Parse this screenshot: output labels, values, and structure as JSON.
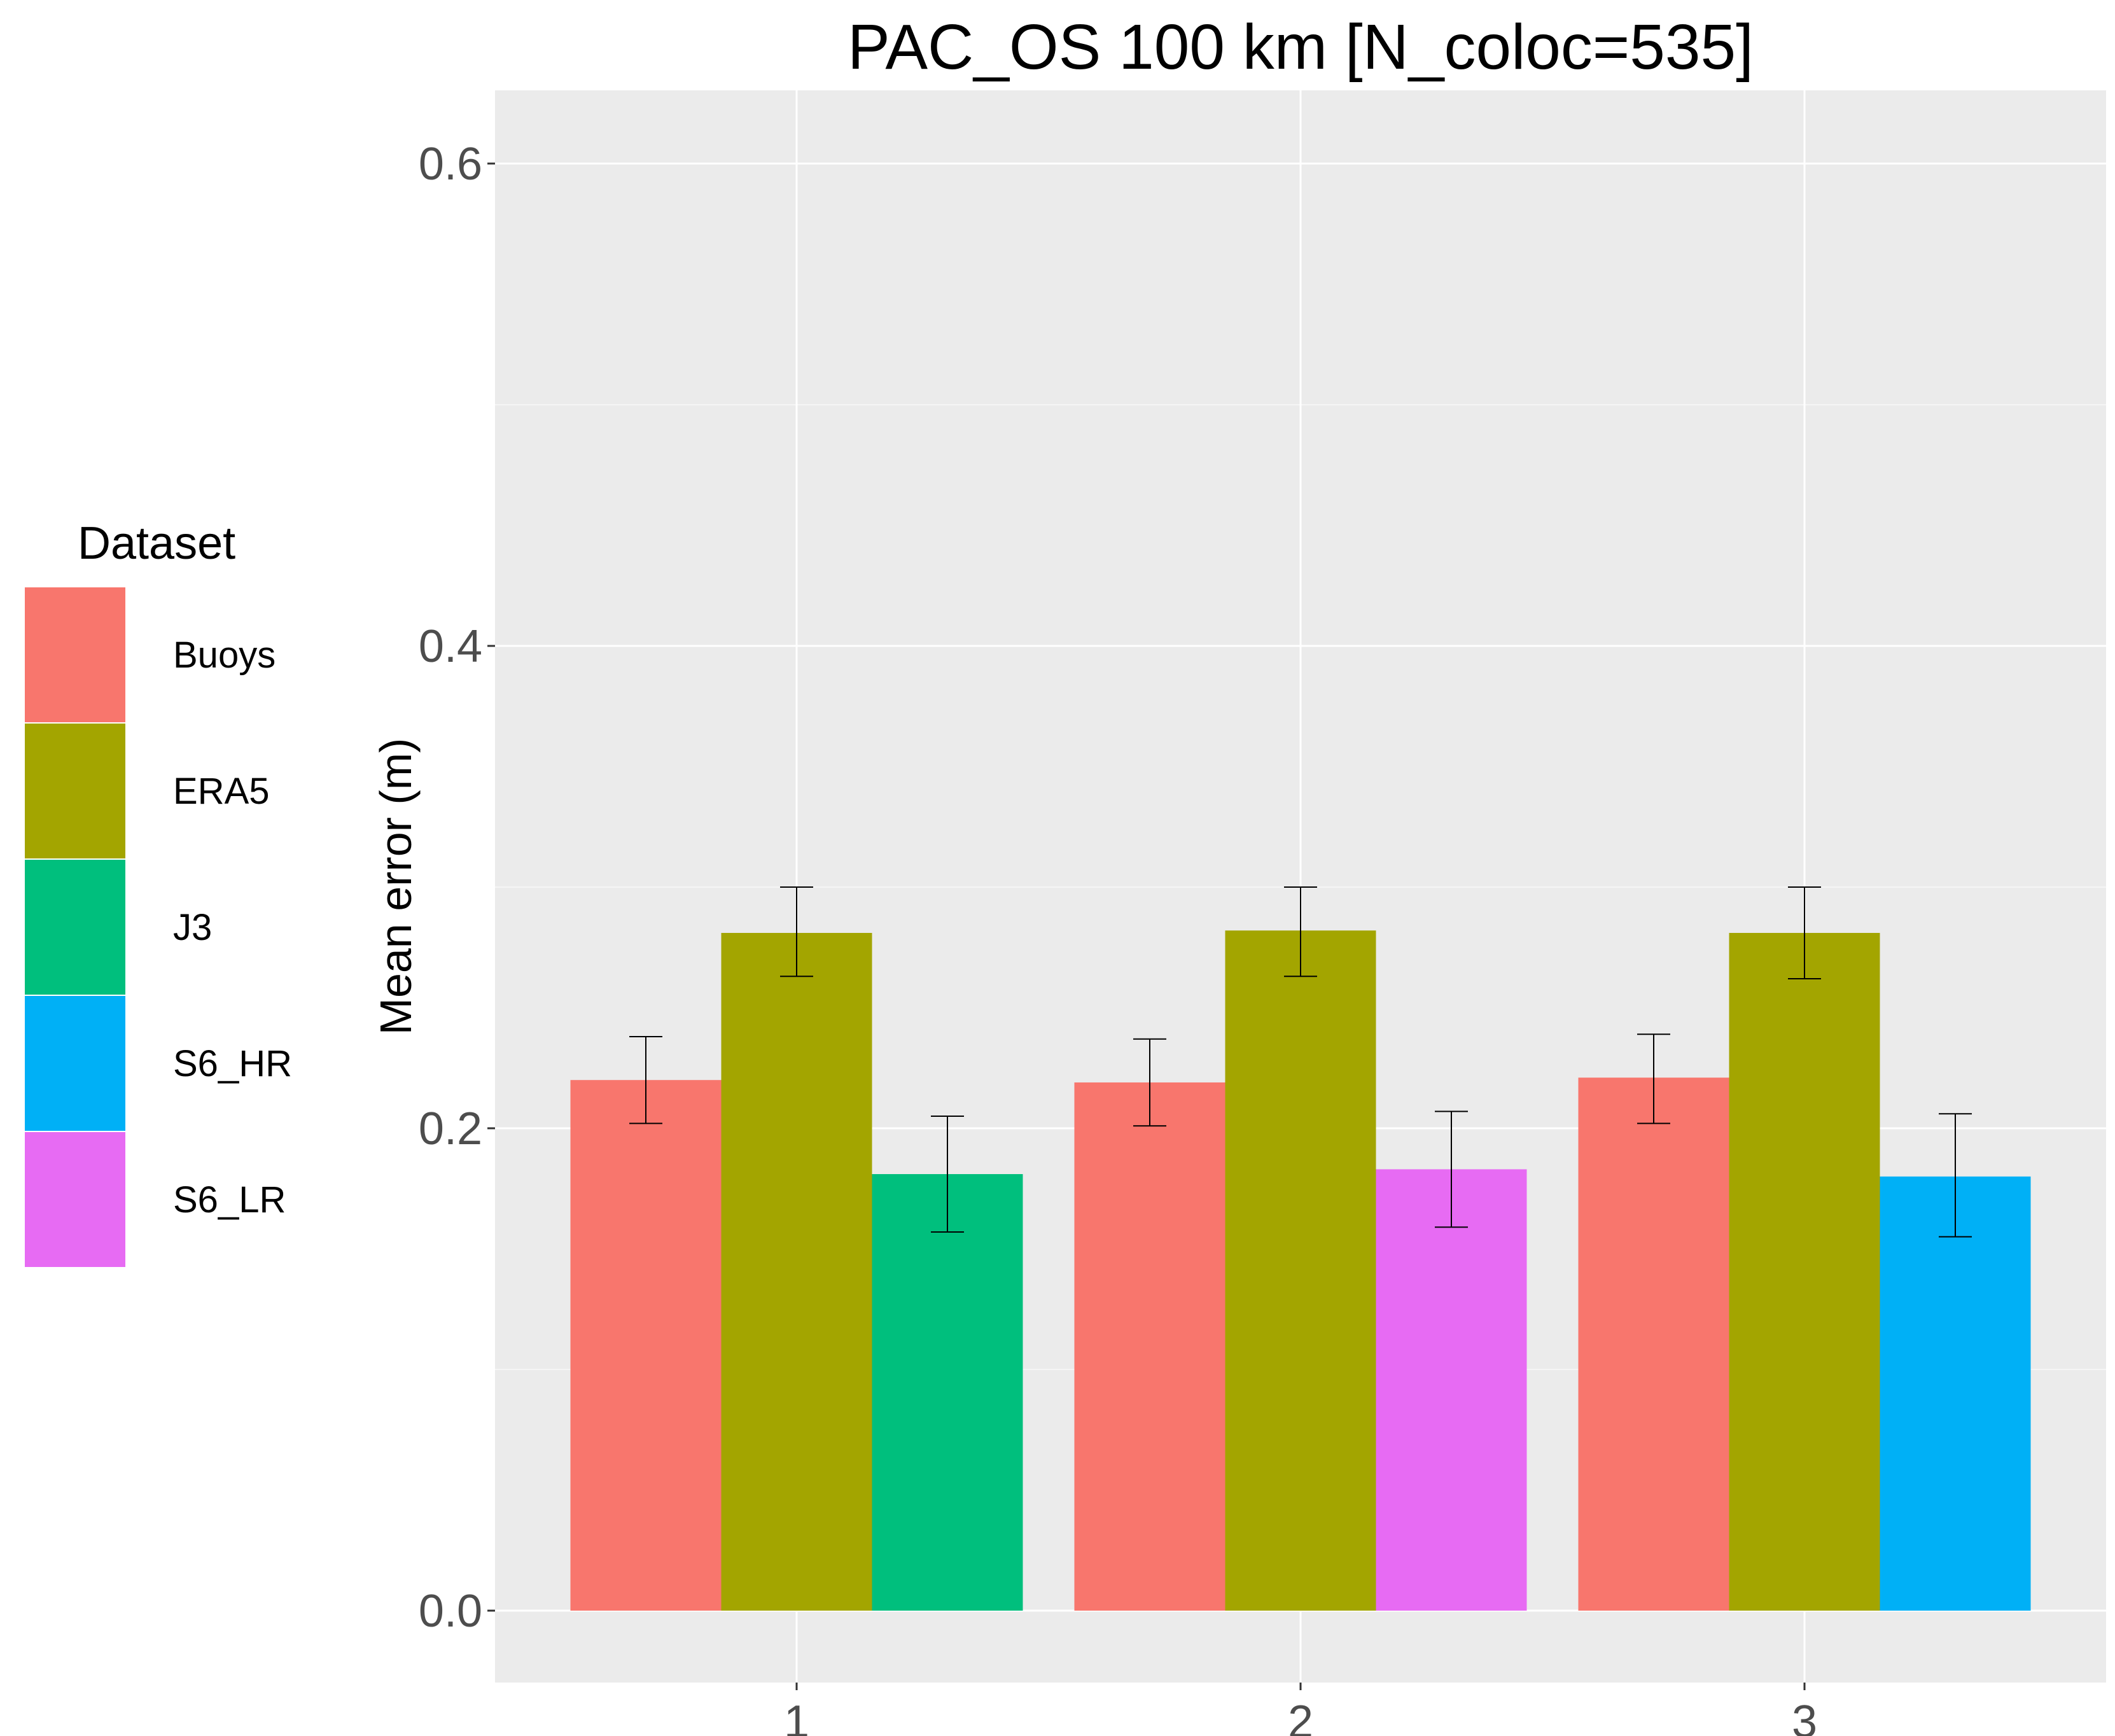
{
  "chart_data": {
    "type": "bar",
    "title": "PAC_OS 100 km [N_coloc=535]",
    "xlabel": "",
    "ylabel": "Mean error (m)",
    "ylim": [
      -0.03,
      0.63
    ],
    "yticks": [
      "0.0",
      "0.2",
      "0.4",
      "0.6"
    ],
    "ytick_values": [
      0.0,
      0.2,
      0.4,
      0.6
    ],
    "categories": [
      "1",
      "2",
      "3"
    ],
    "grid": true,
    "legend": {
      "title": "Dataset",
      "position": "left",
      "entries": [
        {
          "name": "Buoys",
          "color": "#F8766D"
        },
        {
          "name": "ERA5",
          "color": "#A3A500"
        },
        {
          "name": "J3",
          "color": "#00BF7D"
        },
        {
          "name": "S6_HR",
          "color": "#00B0F6"
        },
        {
          "name": "S6_LR",
          "color": "#E76BF3"
        }
      ]
    },
    "groups": [
      {
        "category": "1",
        "bars": [
          {
            "series": "Buoys",
            "value": 0.22,
            "err_low": 0.202,
            "err_high": 0.238
          },
          {
            "series": "ERA5",
            "value": 0.281,
            "err_low": 0.263,
            "err_high": 0.3
          },
          {
            "series": "J3",
            "value": 0.181,
            "err_low": 0.157,
            "err_high": 0.205
          }
        ]
      },
      {
        "category": "2",
        "bars": [
          {
            "series": "Buoys",
            "value": 0.219,
            "err_low": 0.201,
            "err_high": 0.237
          },
          {
            "series": "ERA5",
            "value": 0.282,
            "err_low": 0.263,
            "err_high": 0.3
          },
          {
            "series": "S6_LR",
            "value": 0.183,
            "err_low": 0.159,
            "err_high": 0.207
          }
        ]
      },
      {
        "category": "3",
        "bars": [
          {
            "series": "Buoys",
            "value": 0.221,
            "err_low": 0.202,
            "err_high": 0.239
          },
          {
            "series": "ERA5",
            "value": 0.281,
            "err_low": 0.262,
            "err_high": 0.3
          },
          {
            "series": "S6_HR",
            "value": 0.18,
            "err_low": 0.155,
            "err_high": 0.206
          }
        ]
      }
    ]
  }
}
